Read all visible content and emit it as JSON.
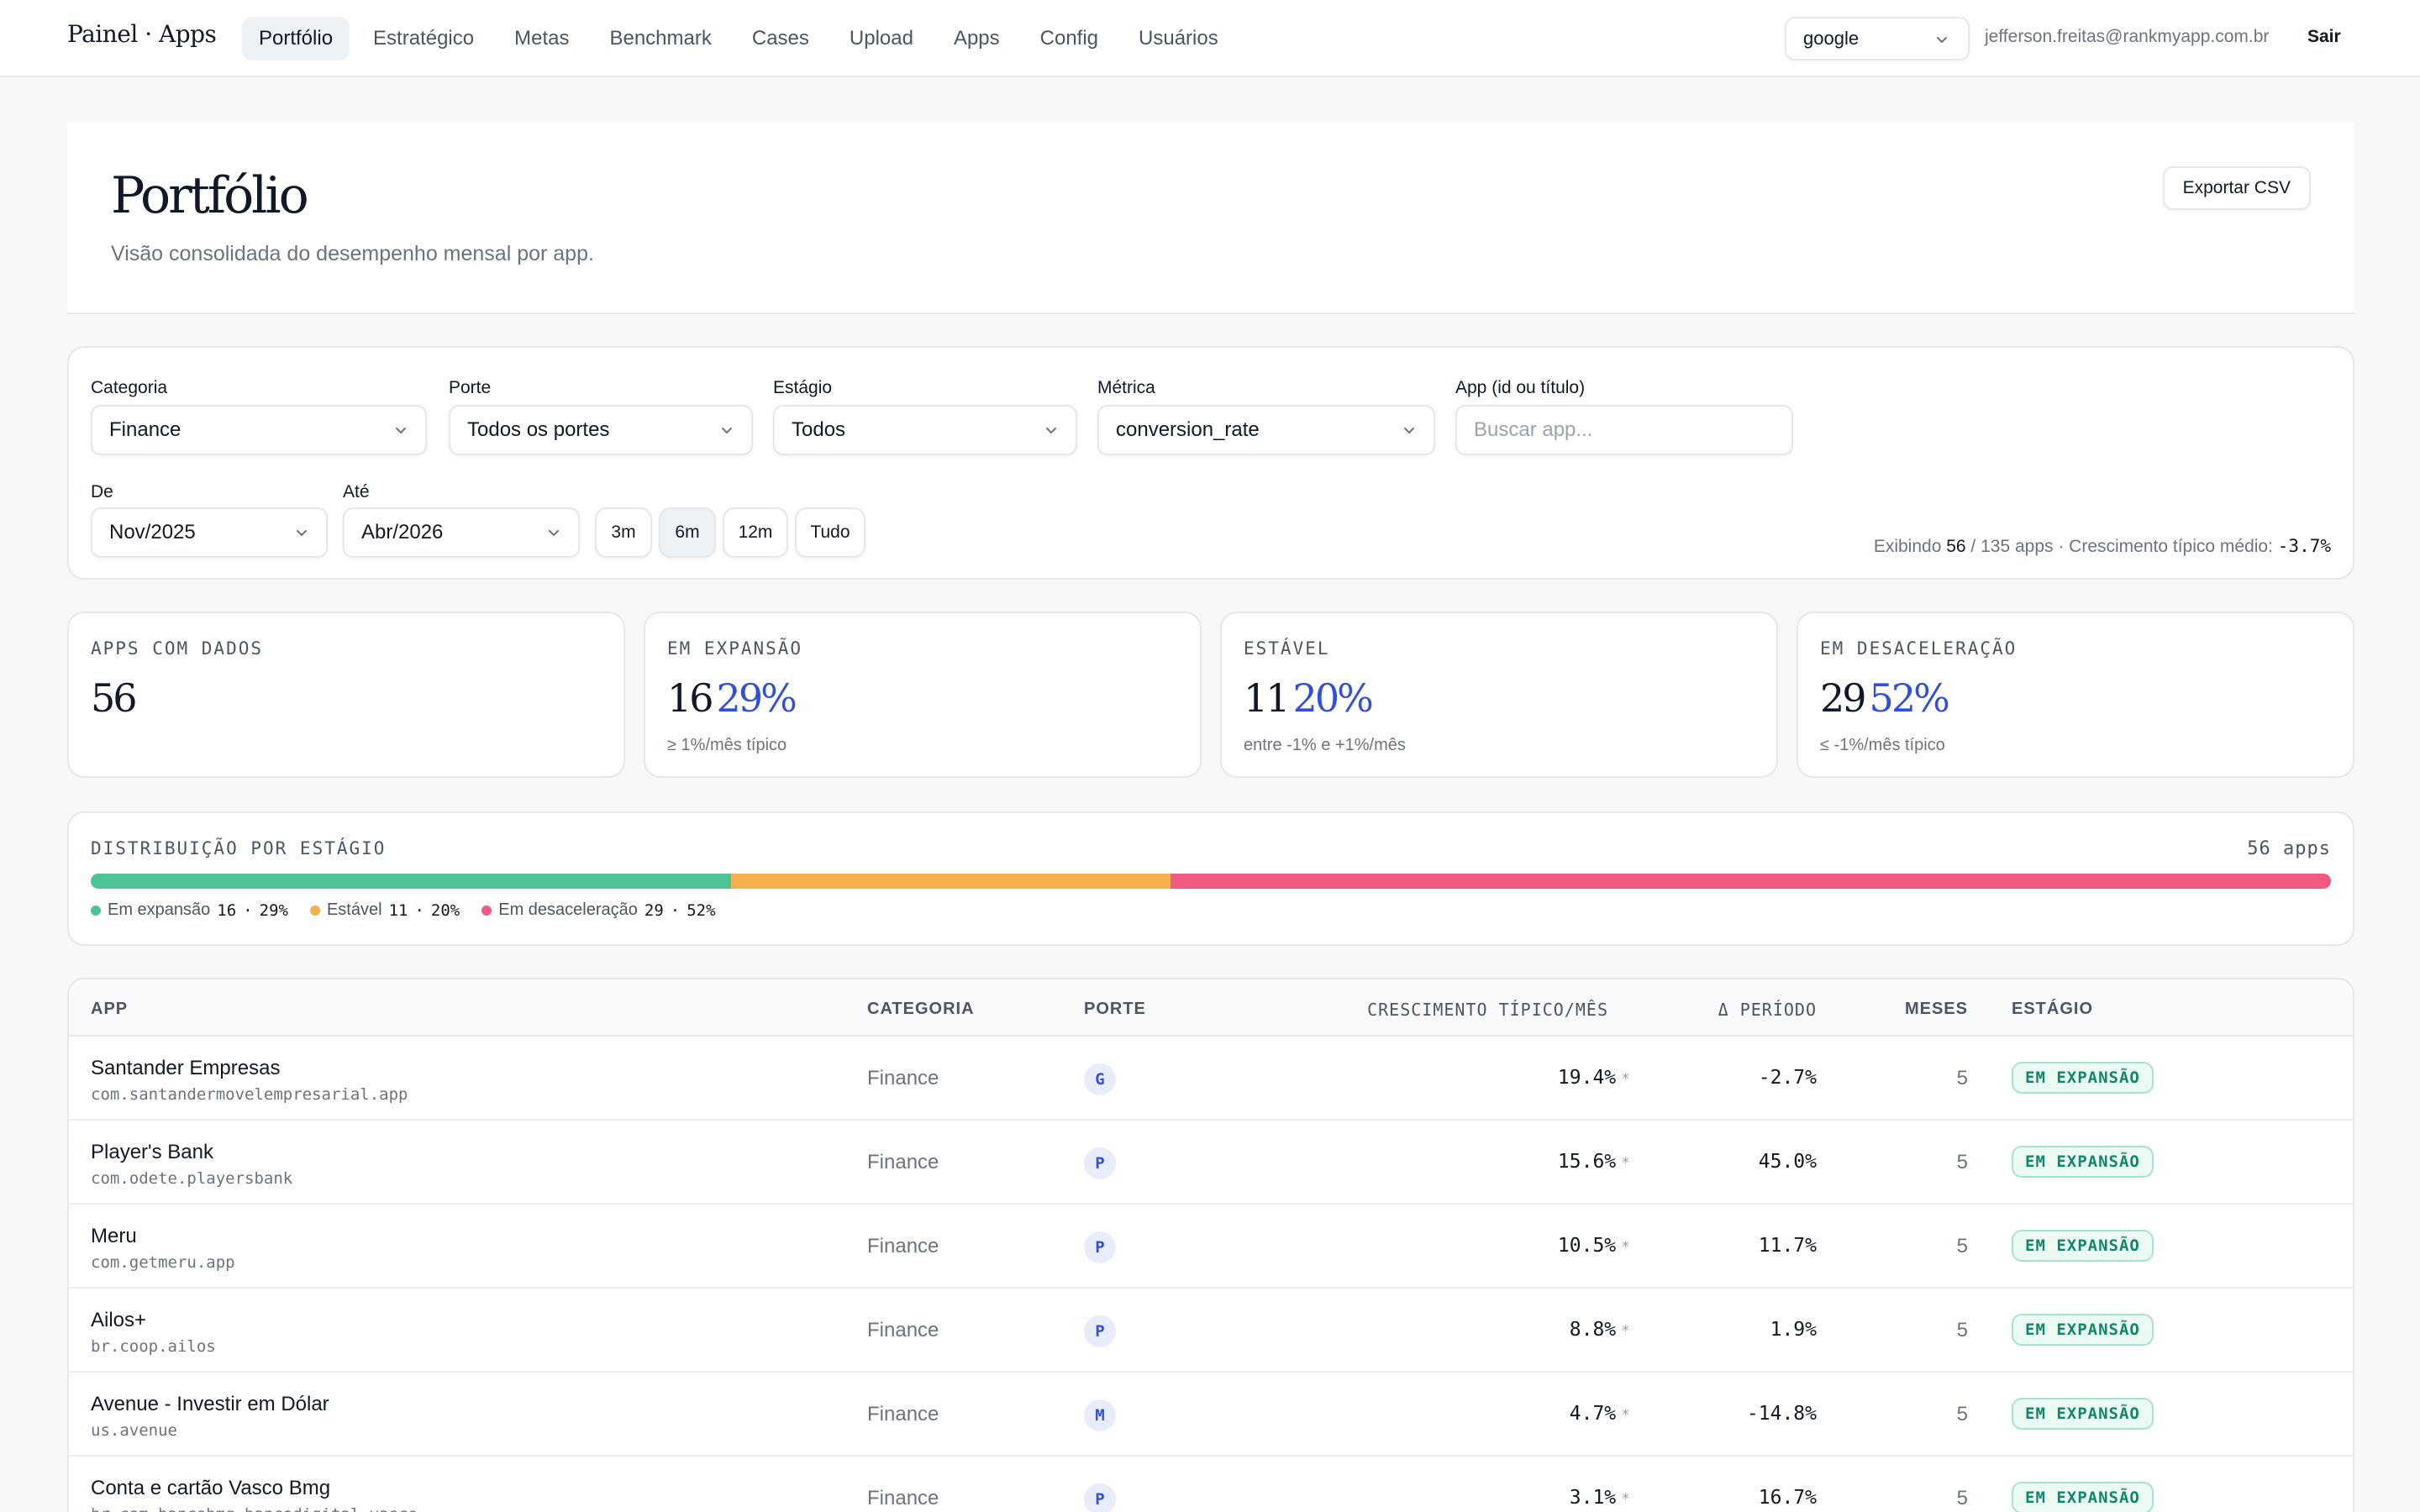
{
  "nav": {
    "brand": "Painel · Apps",
    "tabs": [
      "Portfólio",
      "Estratégico",
      "Metas",
      "Benchmark",
      "Cases",
      "Upload",
      "Apps",
      "Config",
      "Usuários"
    ],
    "active_tab": "Portfólio",
    "provider": "google",
    "user_email": "jefferson.freitas@rankmyapp.com.br",
    "logout": "Sair"
  },
  "header": {
    "title": "Portfólio",
    "subtitle": "Visão consolidada do desempenho mensal por app.",
    "export_label": "Exportar CSV"
  },
  "filters": {
    "category": {
      "label": "Categoria",
      "value": "Finance"
    },
    "size": {
      "label": "Porte",
      "value": "Todos os portes"
    },
    "stage": {
      "label": "Estágio",
      "value": "Todos"
    },
    "metric": {
      "label": "Métrica",
      "value": "conversion_rate"
    },
    "app": {
      "label": "App (id ou título)",
      "placeholder": "Buscar app..."
    },
    "from": {
      "label": "De",
      "value": "Nov/2025"
    },
    "to": {
      "label": "Até",
      "value": "Abr/2026"
    },
    "ranges": [
      "3m",
      "6m",
      "12m",
      "Tudo"
    ],
    "active_range": "6m",
    "summary_prefix": "Exibindo",
    "summary_shown": "56",
    "summary_total": "/ 135 apps · Crescimento típico médio:",
    "summary_growth": "-3.7%"
  },
  "stats": [
    {
      "title": "APPS COM DADOS",
      "value": "56",
      "pct": "",
      "note": ""
    },
    {
      "title": "EM EXPANSÃO",
      "value": "16",
      "pct": "29%",
      "note": "≥ 1%/mês típico"
    },
    {
      "title": "ESTÁVEL",
      "value": "11",
      "pct": "20%",
      "note": "entre -1% e +1%/mês"
    },
    {
      "title": "EM DESACELERAÇÃO",
      "value": "29",
      "pct": "52%",
      "note": "≤ -1%/mês típico"
    }
  ],
  "distribution": {
    "title": "DISTRIBUIÇÃO POR ESTÁGIO",
    "count": "56 apps",
    "segments": [
      {
        "label": "Em expansão",
        "count": 16,
        "pct": "29%",
        "color": "#4cc494"
      },
      {
        "label": "Estável",
        "count": 11,
        "pct": "20%",
        "color": "#f3b04c"
      },
      {
        "label": "Em desaceleração",
        "count": 29,
        "pct": "52%",
        "color": "#f05a80"
      }
    ]
  },
  "table": {
    "headers": {
      "app": "APP",
      "category": "CATEGORIA",
      "size": "PORTE",
      "growth": "CRESCIMENTO TÍPICO/MÊS",
      "delta": "Δ PERÍODO",
      "months": "MESES",
      "stage": "ESTÁGIO"
    },
    "rows": [
      {
        "name": "Santander Empresas",
        "id": "com.santandermovelempresarial.app",
        "category": "Finance",
        "size": "G",
        "growth": "19.4%",
        "delta": "-2.7%",
        "months": "5",
        "stage": "EM EXPANSÃO"
      },
      {
        "name": "Player's Bank",
        "id": "com.odete.playersbank",
        "category": "Finance",
        "size": "P",
        "growth": "15.6%",
        "delta": "45.0%",
        "months": "5",
        "stage": "EM EXPANSÃO"
      },
      {
        "name": "Meru",
        "id": "com.getmeru.app",
        "category": "Finance",
        "size": "P",
        "growth": "10.5%",
        "delta": "11.7%",
        "months": "5",
        "stage": "EM EXPANSÃO"
      },
      {
        "name": "Ailos+",
        "id": "br.coop.ailos",
        "category": "Finance",
        "size": "P",
        "growth": "8.8%",
        "delta": "1.9%",
        "months": "5",
        "stage": "EM EXPANSÃO"
      },
      {
        "name": "Avenue - Investir em Dólar",
        "id": "us.avenue",
        "category": "Finance",
        "size": "M",
        "growth": "4.7%",
        "delta": "-14.8%",
        "months": "5",
        "stage": "EM EXPANSÃO"
      },
      {
        "name": "Conta e cartão Vasco Bmg",
        "id": "br.com.bancobmg.bancodigital.vasco",
        "category": "Finance",
        "size": "P",
        "growth": "3.1%",
        "delta": "16.7%",
        "months": "5",
        "stage": "EM EXPANSÃO"
      }
    ],
    "growth_marker": "*"
  }
}
